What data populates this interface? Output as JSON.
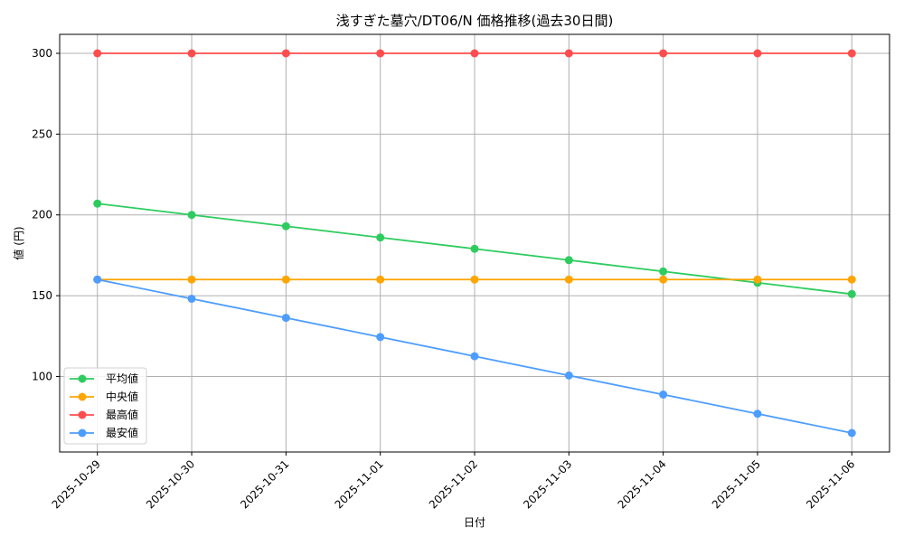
{
  "chart_data": {
    "type": "line",
    "title": "浅すぎた墓穴/DT06/N 価格推移(過去30日間)",
    "xlabel": "日付",
    "ylabel": "値 (円)",
    "categories": [
      "2025-10-29",
      "2025-10-30",
      "2025-10-31",
      "2025-11-01",
      "2025-11-02",
      "2025-11-03",
      "2025-11-04",
      "2025-11-05",
      "2025-11-06"
    ],
    "ylim": [
      53.25,
      311.75
    ],
    "yticks": [
      100,
      150,
      200,
      250,
      300
    ],
    "grid": true,
    "legend_position": "lower-left",
    "series": [
      {
        "name": "平均値",
        "color": "#2ecc5f",
        "values": [
          207,
          200,
          193,
          186,
          179,
          172,
          165,
          158,
          151
        ]
      },
      {
        "name": "中央値",
        "color": "#ffa500",
        "values": [
          160,
          160,
          160,
          160,
          160,
          160,
          160,
          160,
          160
        ]
      },
      {
        "name": "最高値",
        "color": "#ff4d4d",
        "values": [
          300,
          300,
          300,
          300,
          300,
          300,
          300,
          300,
          300
        ]
      },
      {
        "name": "最安値",
        "color": "#4d9dff",
        "values": [
          160,
          148.1,
          136.3,
          124.4,
          112.5,
          100.6,
          88.8,
          76.9,
          65
        ]
      }
    ]
  }
}
